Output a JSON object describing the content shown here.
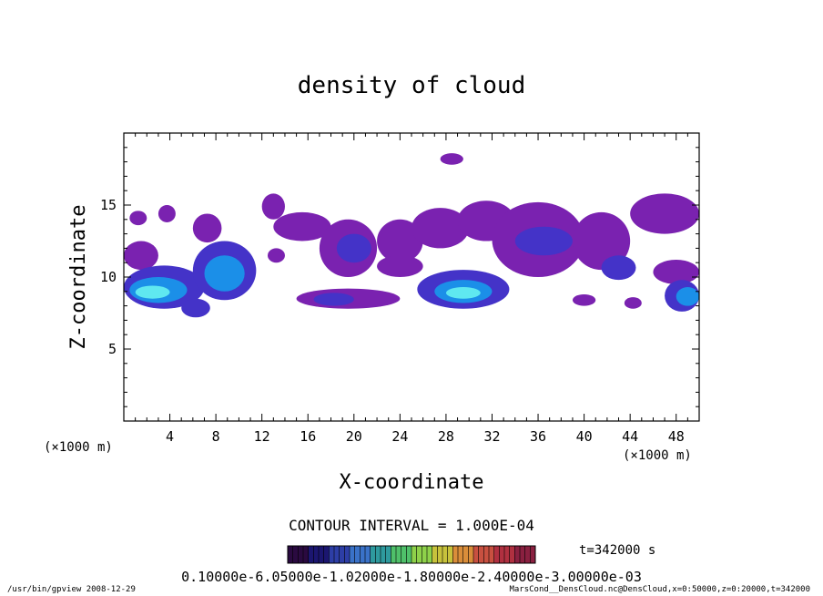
{
  "chart_data": {
    "type": "heatmap",
    "title": "density of cloud",
    "xlabel": "X-coordinate",
    "ylabel": "Z-coordinate",
    "x_unit_left": "(×1000 m)",
    "x_unit_right": "(×1000 m)",
    "xlim": [
      0,
      50
    ],
    "ylim": [
      0,
      20
    ],
    "xticks": [
      4,
      8,
      12,
      16,
      20,
      24,
      28,
      32,
      36,
      40,
      44,
      48
    ],
    "yticks": [
      5,
      10,
      15
    ],
    "contour_interval_label": "CONTOUR INTERVAL = 1.000E-04",
    "time_label": "t=342000 s",
    "colorbar_label": "0.10000e-6.05000e-1.02000e-1.80000e-2.40000e-3.00000e-03",
    "regions": [
      {
        "x": [
          0.5,
          2.0
        ],
        "y": [
          13.6,
          14.6
        ],
        "level": 1
      },
      {
        "x": [
          3.0,
          4.5
        ],
        "y": [
          13.8,
          15.0
        ],
        "level": 1
      },
      {
        "x": [
          6.0,
          8.5
        ],
        "y": [
          12.4,
          14.4
        ],
        "level": 1
      },
      {
        "x": [
          0.0,
          3.0
        ],
        "y": [
          10.5,
          12.5
        ],
        "level": 1
      },
      {
        "x": [
          0.0,
          7.0
        ],
        "y": [
          7.8,
          10.8
        ],
        "level": 2
      },
      {
        "x": [
          0.5,
          5.5
        ],
        "y": [
          8.2,
          10.0
        ],
        "level": 3
      },
      {
        "x": [
          1.0,
          4.0
        ],
        "y": [
          8.5,
          9.4
        ],
        "level": 4
      },
      {
        "x": [
          5.0,
          7.5
        ],
        "y": [
          7.2,
          8.5
        ],
        "level": 2
      },
      {
        "x": [
          6.0,
          11.5
        ],
        "y": [
          8.4,
          12.5
        ],
        "level": 2
      },
      {
        "x": [
          7.0,
          10.5
        ],
        "y": [
          9.0,
          11.5
        ],
        "level": 3
      },
      {
        "x": [
          12.0,
          14.0
        ],
        "y": [
          14.0,
          15.8
        ],
        "level": 1
      },
      {
        "x": [
          13.0,
          18.0
        ],
        "y": [
          12.5,
          14.5
        ],
        "level": 1
      },
      {
        "x": [
          17.0,
          22.0
        ],
        "y": [
          10.0,
          14.0
        ],
        "level": 1
      },
      {
        "x": [
          18.5,
          21.5
        ],
        "y": [
          11.0,
          13.0
        ],
        "level": 2
      },
      {
        "x": [
          12.5,
          14.0
        ],
        "y": [
          11.0,
          12.0
        ],
        "level": 1
      },
      {
        "x": [
          22.0,
          26.0
        ],
        "y": [
          11.0,
          14.0
        ],
        "level": 1
      },
      {
        "x": [
          25.0,
          30.0
        ],
        "y": [
          12.0,
          14.8
        ],
        "level": 1
      },
      {
        "x": [
          27.5,
          29.5
        ],
        "y": [
          17.8,
          18.6
        ],
        "level": 1
      },
      {
        "x": [
          29.0,
          34.0
        ],
        "y": [
          12.5,
          15.3
        ],
        "level": 1
      },
      {
        "x": [
          32.0,
          40.0
        ],
        "y": [
          10.0,
          15.2
        ],
        "level": 1
      },
      {
        "x": [
          34.0,
          39.0
        ],
        "y": [
          11.5,
          13.5
        ],
        "level": 2
      },
      {
        "x": [
          39.0,
          44.0
        ],
        "y": [
          10.5,
          14.5
        ],
        "level": 1
      },
      {
        "x": [
          44.0,
          50.0
        ],
        "y": [
          13.0,
          15.8
        ],
        "level": 1
      },
      {
        "x": [
          41.5,
          44.5
        ],
        "y": [
          9.8,
          11.5
        ],
        "level": 2
      },
      {
        "x": [
          22.0,
          26.0
        ],
        "y": [
          10.0,
          11.5
        ],
        "level": 1
      },
      {
        "x": [
          15.0,
          24.0
        ],
        "y": [
          7.8,
          9.2
        ],
        "level": 1
      },
      {
        "x": [
          16.5,
          20.0
        ],
        "y": [
          8.0,
          8.9
        ],
        "level": 2
      },
      {
        "x": [
          25.5,
          33.5
        ],
        "y": [
          7.8,
          10.5
        ],
        "level": 2
      },
      {
        "x": [
          27.0,
          32.0
        ],
        "y": [
          8.2,
          9.8
        ],
        "level": 3
      },
      {
        "x": [
          28.0,
          31.0
        ],
        "y": [
          8.5,
          9.3
        ],
        "level": 4
      },
      {
        "x": [
          46.0,
          50.0
        ],
        "y": [
          9.5,
          11.2
        ],
        "level": 1
      },
      {
        "x": [
          47.0,
          50.0
        ],
        "y": [
          7.6,
          9.8
        ],
        "level": 2
      },
      {
        "x": [
          48.0,
          50.0
        ],
        "y": [
          8.0,
          9.3
        ],
        "level": 3
      },
      {
        "x": [
          43.5,
          45.0
        ],
        "y": [
          7.8,
          8.6
        ],
        "level": 1
      },
      {
        "x": [
          39.0,
          41.0
        ],
        "y": [
          8.0,
          8.8
        ],
        "level": 1
      }
    ],
    "level_colors": [
      "#ffffff",
      "#7a22b0",
      "#4433c8",
      "#1b8fe8",
      "#5fe8f0"
    ],
    "colorbar_colors": [
      "#2a0a40",
      "#1b1670",
      "#2d3ea6",
      "#3a72c8",
      "#2e9a9e",
      "#4fc06a",
      "#8ed14a",
      "#c7c23c",
      "#d98d3a",
      "#c85040",
      "#b03040",
      "#8a2040"
    ]
  },
  "footer": {
    "left": "/usr/bin/gpview  2008-12-29",
    "right": "MarsCond__DensCloud.nc@DensCloud,x=0:50000,z=0:20000,t=342000"
  }
}
